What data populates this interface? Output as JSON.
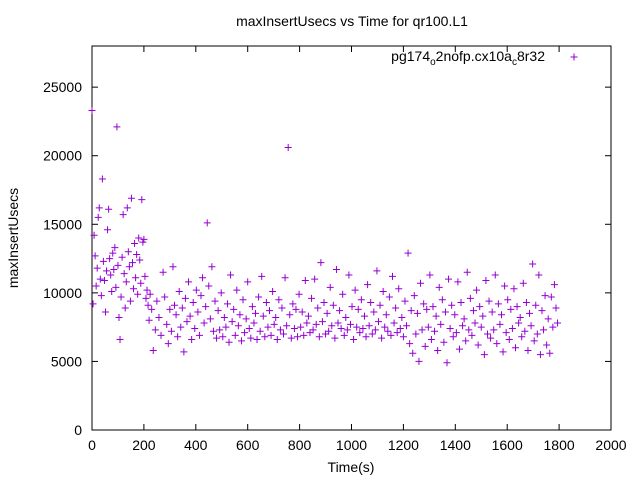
{
  "chart_data": {
    "type": "scatter",
    "title": "maxInsertUsecs vs Time for qr100.L1",
    "xlabel": "Time(s)",
    "ylabel": "maxInsertUsecs",
    "xlim": [
      0,
      2000
    ],
    "ylim": [
      0,
      28000
    ],
    "xticks": [
      0,
      200,
      400,
      600,
      800,
      1000,
      1200,
      1400,
      1600,
      1800,
      2000
    ],
    "yticks": [
      0,
      5000,
      10000,
      15000,
      20000,
      25000
    ],
    "grid": false,
    "legend_position": "top-right",
    "marker": "+",
    "series": [
      {
        "name_parts": [
          {
            "text": "pg174",
            "sub": false
          },
          {
            "text": "o",
            "sub": true
          },
          {
            "text": "2nofp.cx10a",
            "sub": false
          },
          {
            "text": "c",
            "sub": true
          },
          {
            "text": "8r32",
            "sub": false
          }
        ],
        "color": "#9400d3",
        "points": [
          [
            0,
            23300
          ],
          [
            4,
            9200
          ],
          [
            8,
            14200
          ],
          [
            12,
            12700
          ],
          [
            16,
            10500
          ],
          [
            20,
            11800
          ],
          [
            24,
            15500
          ],
          [
            28,
            16200
          ],
          [
            32,
            11000
          ],
          [
            36,
            9800
          ],
          [
            40,
            18300
          ],
          [
            44,
            12300
          ],
          [
            48,
            10900
          ],
          [
            52,
            8600
          ],
          [
            56,
            11600
          ],
          [
            60,
            14600
          ],
          [
            64,
            16100
          ],
          [
            68,
            12500
          ],
          [
            72,
            11300
          ],
          [
            76,
            10100
          ],
          [
            80,
            12900
          ],
          [
            84,
            11700
          ],
          [
            88,
            13300
          ],
          [
            92,
            10400
          ],
          [
            96,
            22100
          ],
          [
            100,
            12000
          ],
          [
            104,
            8200
          ],
          [
            108,
            6600
          ],
          [
            112,
            9700
          ],
          [
            116,
            12600
          ],
          [
            120,
            15700
          ],
          [
            124,
            11400
          ],
          [
            128,
            8900
          ],
          [
            132,
            10800
          ],
          [
            136,
            16200
          ],
          [
            140,
            13000
          ],
          [
            144,
            11900
          ],
          [
            148,
            9400
          ],
          [
            152,
            16900
          ],
          [
            156,
            12200
          ],
          [
            160,
            10300
          ],
          [
            164,
            13600
          ],
          [
            168,
            11100
          ],
          [
            172,
            12800
          ],
          [
            176,
            9900
          ],
          [
            180,
            14000
          ],
          [
            184,
            12400
          ],
          [
            188,
            10700
          ],
          [
            192,
            16800
          ],
          [
            196,
            13700
          ],
          [
            200,
            13900
          ],
          [
            204,
            11200
          ],
          [
            208,
            9600
          ],
          [
            212,
            10200
          ],
          [
            216,
            9100
          ],
          [
            220,
            8000
          ],
          [
            224,
            9900
          ],
          [
            230,
            8800
          ],
          [
            236,
            5800
          ],
          [
            244,
            7300
          ],
          [
            250,
            9400
          ],
          [
            258,
            8200
          ],
          [
            266,
            6900
          ],
          [
            274,
            11500
          ],
          [
            280,
            9700
          ],
          [
            288,
            7700
          ],
          [
            294,
            6300
          ],
          [
            300,
            8800
          ],
          [
            306,
            7200
          ],
          [
            312,
            11900
          ],
          [
            318,
            9100
          ],
          [
            324,
            8400
          ],
          [
            330,
            6800
          ],
          [
            336,
            10100
          ],
          [
            342,
            7500
          ],
          [
            348,
            8900
          ],
          [
            354,
            5700
          ],
          [
            360,
            9600
          ],
          [
            366,
            7900
          ],
          [
            372,
            10800
          ],
          [
            378,
            8300
          ],
          [
            384,
            6600
          ],
          [
            390,
            9300
          ],
          [
            396,
            7400
          ],
          [
            402,
            10200
          ],
          [
            408,
            8600
          ],
          [
            414,
            6900
          ],
          [
            420,
            9800
          ],
          [
            426,
            11100
          ],
          [
            432,
            7800
          ],
          [
            438,
            9000
          ],
          [
            444,
            15100
          ],
          [
            450,
            10500
          ],
          [
            456,
            8100
          ],
          [
            462,
            11900
          ],
          [
            468,
            7200
          ],
          [
            474,
            9400
          ],
          [
            480,
            6700
          ],
          [
            486,
            8700
          ],
          [
            492,
            7300
          ],
          [
            498,
            10000
          ],
          [
            504,
            6800
          ],
          [
            510,
            8200
          ],
          [
            516,
            7500
          ],
          [
            522,
            9200
          ],
          [
            528,
            6400
          ],
          [
            534,
            11300
          ],
          [
            540,
            7900
          ],
          [
            546,
            8800
          ],
          [
            552,
            6900
          ],
          [
            558,
            10200
          ],
          [
            564,
            7600
          ],
          [
            570,
            8400
          ],
          [
            576,
            6500
          ],
          [
            582,
            9500
          ],
          [
            588,
            7100
          ],
          [
            594,
            8100
          ],
          [
            600,
            10800
          ],
          [
            606,
            7400
          ],
          [
            612,
            6700
          ],
          [
            618,
            9000
          ],
          [
            624,
            7800
          ],
          [
            630,
            8500
          ],
          [
            636,
            6600
          ],
          [
            642,
            9700
          ],
          [
            648,
            7200
          ],
          [
            654,
            11200
          ],
          [
            660,
            8300
          ],
          [
            666,
            6800
          ],
          [
            672,
            9300
          ],
          [
            678,
            7500
          ],
          [
            684,
            8700
          ],
          [
            690,
            6900
          ],
          [
            696,
            10100
          ],
          [
            702,
            7700
          ],
          [
            708,
            8200
          ],
          [
            714,
            6600
          ],
          [
            720,
            9500
          ],
          [
            726,
            7300
          ],
          [
            732,
            8900
          ],
          [
            738,
            7000
          ],
          [
            744,
            11100
          ],
          [
            750,
            7600
          ],
          [
            756,
            20600
          ],
          [
            762,
            8400
          ],
          [
            768,
            6700
          ],
          [
            774,
            9200
          ],
          [
            780,
            7400
          ],
          [
            786,
            8800
          ],
          [
            792,
            6800
          ],
          [
            798,
            9900
          ],
          [
            804,
            7500
          ],
          [
            810,
            8600
          ],
          [
            816,
            6900
          ],
          [
            822,
            10900
          ],
          [
            828,
            7800
          ],
          [
            834,
            8300
          ],
          [
            840,
            7100
          ],
          [
            846,
            9600
          ],
          [
            852,
            7300
          ],
          [
            858,
            11000
          ],
          [
            864,
            7700
          ],
          [
            870,
            8900
          ],
          [
            876,
            6800
          ],
          [
            882,
            12200
          ],
          [
            888,
            7900
          ],
          [
            894,
            9300
          ],
          [
            900,
            7000
          ],
          [
            906,
            8500
          ],
          [
            912,
            7200
          ],
          [
            918,
            10400
          ],
          [
            924,
            7600
          ],
          [
            930,
            9100
          ],
          [
            936,
            6700
          ],
          [
            942,
            11700
          ],
          [
            948,
            7800
          ],
          [
            954,
            8700
          ],
          [
            960,
            7400
          ],
          [
            966,
            9900
          ],
          [
            972,
            6900
          ],
          [
            978,
            8200
          ],
          [
            984,
            7300
          ],
          [
            990,
            11300
          ],
          [
            996,
            7700
          ],
          [
            1002,
            9000
          ],
          [
            1008,
            6600
          ],
          [
            1014,
            10200
          ],
          [
            1020,
            7500
          ],
          [
            1026,
            8800
          ],
          [
            1032,
            7100
          ],
          [
            1038,
            9500
          ],
          [
            1044,
            7400
          ],
          [
            1050,
            8300
          ],
          [
            1056,
            6800
          ],
          [
            1062,
            10600
          ],
          [
            1068,
            7600
          ],
          [
            1074,
            9300
          ],
          [
            1080,
            7000
          ],
          [
            1086,
            8600
          ],
          [
            1092,
            7300
          ],
          [
            1098,
            11600
          ],
          [
            1104,
            7900
          ],
          [
            1110,
            9100
          ],
          [
            1116,
            6700
          ],
          [
            1122,
            10100
          ],
          [
            1128,
            7500
          ],
          [
            1134,
            8400
          ],
          [
            1140,
            7200
          ],
          [
            1146,
            9700
          ],
          [
            1152,
            6900
          ],
          [
            1158,
            11200
          ],
          [
            1164,
            7800
          ],
          [
            1170,
            8900
          ],
          [
            1176,
            7100
          ],
          [
            1182,
            10300
          ],
          [
            1188,
            7400
          ],
          [
            1194,
            8200
          ],
          [
            1200,
            6800
          ],
          [
            1206,
            9400
          ],
          [
            1212,
            7600
          ],
          [
            1218,
            12900
          ],
          [
            1224,
            6300
          ],
          [
            1230,
            8700
          ],
          [
            1236,
            5600
          ],
          [
            1242,
            9800
          ],
          [
            1248,
            7000
          ],
          [
            1254,
            8500
          ],
          [
            1260,
            5000
          ],
          [
            1266,
            10700
          ],
          [
            1272,
            7300
          ],
          [
            1278,
            9200
          ],
          [
            1284,
            6100
          ],
          [
            1290,
            8800
          ],
          [
            1296,
            7500
          ],
          [
            1302,
            11300
          ],
          [
            1308,
            6600
          ],
          [
            1314,
            9000
          ],
          [
            1320,
            7200
          ],
          [
            1326,
            8300
          ],
          [
            1332,
            5800
          ],
          [
            1338,
            10400
          ],
          [
            1344,
            7700
          ],
          [
            1350,
            9500
          ],
          [
            1356,
            6400
          ],
          [
            1362,
            8600
          ],
          [
            1368,
            4900
          ],
          [
            1374,
            11000
          ],
          [
            1380,
            7400
          ],
          [
            1386,
            9100
          ],
          [
            1392,
            6800
          ],
          [
            1398,
            8400
          ],
          [
            1404,
            7100
          ],
          [
            1410,
            10800
          ],
          [
            1416,
            5900
          ],
          [
            1422,
            9300
          ],
          [
            1428,
            7600
          ],
          [
            1434,
            8100
          ],
          [
            1440,
            6500
          ],
          [
            1446,
            11500
          ],
          [
            1452,
            7300
          ],
          [
            1458,
            9600
          ],
          [
            1464,
            6900
          ],
          [
            1470,
            8700
          ],
          [
            1476,
            7800
          ],
          [
            1482,
            10200
          ],
          [
            1488,
            6200
          ],
          [
            1494,
            9000
          ],
          [
            1500,
            7500
          ],
          [
            1506,
            8300
          ],
          [
            1512,
            5500
          ],
          [
            1518,
            10900
          ],
          [
            1524,
            7000
          ],
          [
            1530,
            9400
          ],
          [
            1536,
            6700
          ],
          [
            1542,
            8600
          ],
          [
            1548,
            7300
          ],
          [
            1554,
            11300
          ],
          [
            1560,
            6300
          ],
          [
            1566,
            9200
          ],
          [
            1572,
            7700
          ],
          [
            1578,
            8400
          ],
          [
            1584,
            5700
          ],
          [
            1590,
            10500
          ],
          [
            1596,
            7100
          ],
          [
            1602,
            9500
          ],
          [
            1608,
            6600
          ],
          [
            1614,
            8800
          ],
          [
            1620,
            7400
          ],
          [
            1626,
            10300
          ],
          [
            1632,
            6000
          ],
          [
            1638,
            9000
          ],
          [
            1644,
            7800
          ],
          [
            1650,
            8200
          ],
          [
            1656,
            6800
          ],
          [
            1662,
            10700
          ],
          [
            1668,
            7200
          ],
          [
            1674,
            9300
          ],
          [
            1680,
            5800
          ],
          [
            1686,
            8500
          ],
          [
            1692,
            7600
          ],
          [
            1698,
            12100
          ],
          [
            1704,
            6500
          ],
          [
            1710,
            9100
          ],
          [
            1716,
            7000
          ],
          [
            1722,
            11300
          ],
          [
            1728,
            5500
          ],
          [
            1734,
            8700
          ],
          [
            1740,
            7300
          ],
          [
            1746,
            9800
          ],
          [
            1752,
            6200
          ],
          [
            1758,
            8100
          ],
          [
            1764,
            5600
          ],
          [
            1770,
            9700
          ],
          [
            1776,
            7500
          ],
          [
            1782,
            10600
          ],
          [
            1788,
            8900
          ],
          [
            1794,
            7800
          ]
        ]
      }
    ]
  }
}
